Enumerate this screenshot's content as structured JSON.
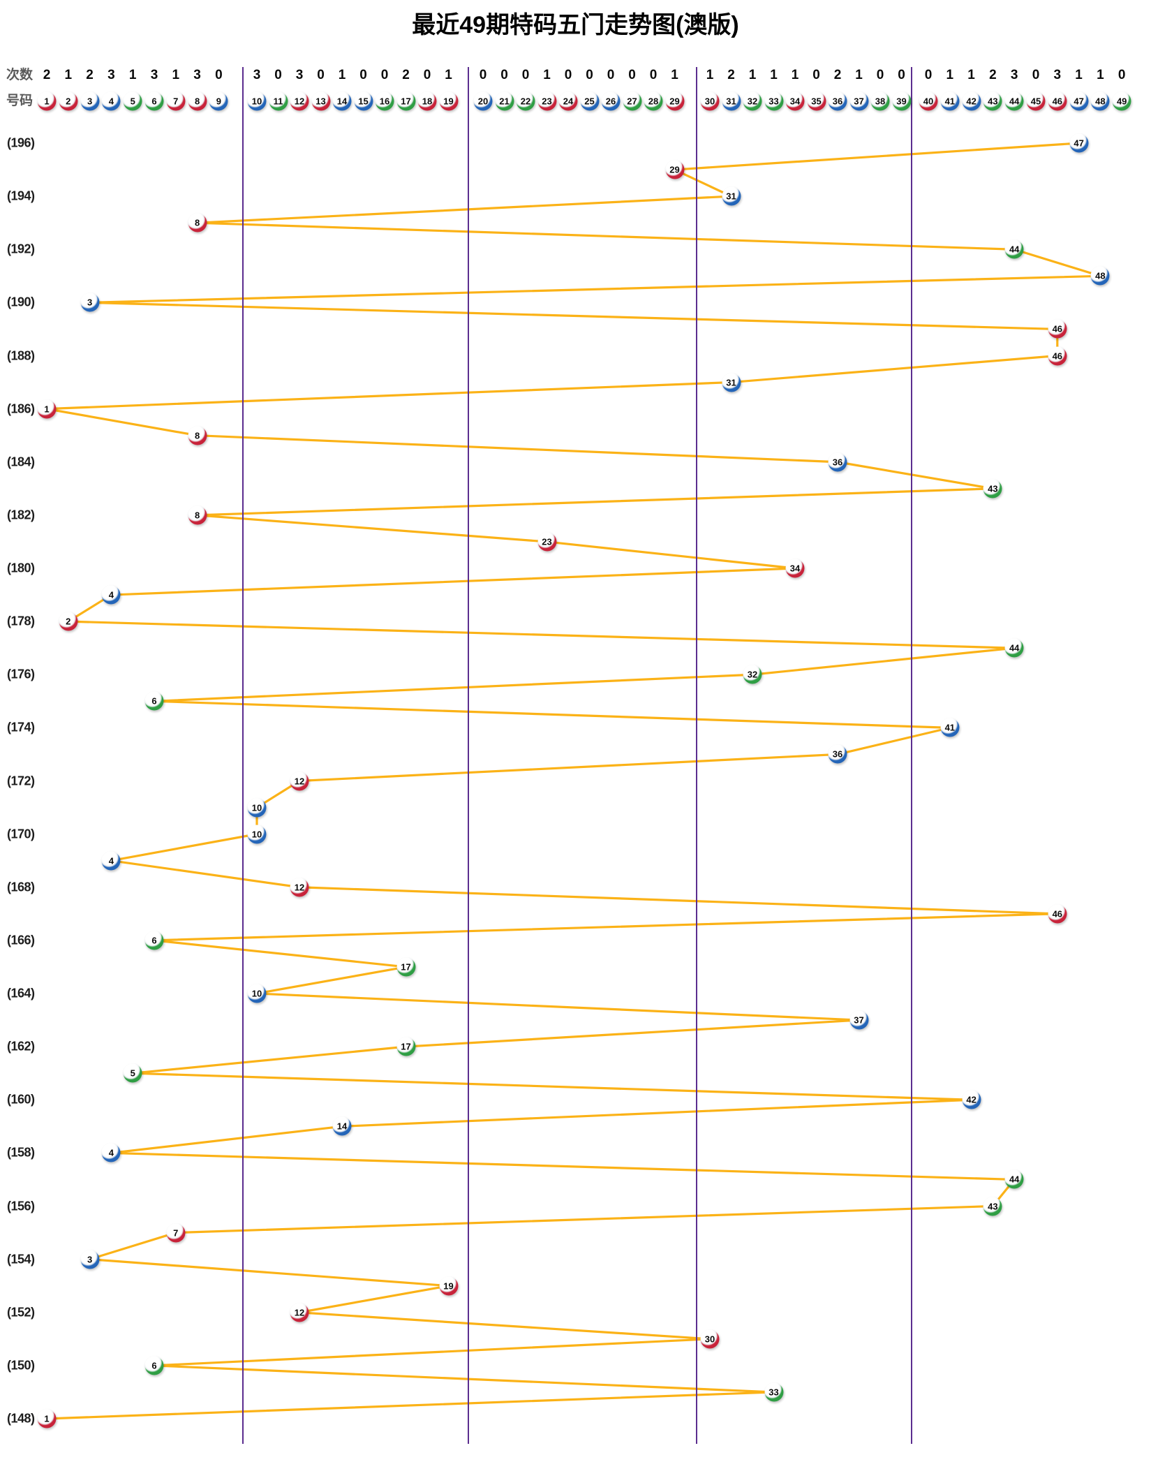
{
  "title": "最近49期特码五门走势图(澳版)",
  "header": {
    "count_label": "次数",
    "number_label": "号码",
    "counts": [
      2,
      1,
      2,
      3,
      1,
      3,
      1,
      3,
      0,
      3,
      0,
      3,
      0,
      1,
      0,
      0,
      2,
      0,
      1,
      0,
      0,
      0,
      1,
      0,
      0,
      0,
      0,
      0,
      1,
      1,
      2,
      1,
      1,
      1,
      0,
      2,
      1,
      0,
      0,
      0,
      1,
      1,
      2,
      3,
      0,
      3,
      1,
      1,
      0
    ]
  },
  "colors": {
    "red": "#C8233A",
    "red_dark": "#7E0E1E",
    "blue": "#2465B8",
    "blue_dark": "#113E7C",
    "green": "#2F9E44",
    "green_dark": "#156327",
    "line": "#FBB217",
    "divider": "#5B2D8F"
  },
  "ball_color_groups": {
    "red": [
      1,
      2,
      7,
      8,
      12,
      13,
      18,
      19,
      23,
      24,
      29,
      30,
      34,
      35,
      40,
      45,
      46
    ],
    "blue": [
      3,
      4,
      9,
      10,
      14,
      15,
      20,
      25,
      26,
      31,
      36,
      37,
      41,
      42,
      47,
      48
    ],
    "green": [
      5,
      6,
      11,
      16,
      17,
      21,
      22,
      27,
      28,
      32,
      33,
      38,
      39,
      43,
      44,
      49
    ]
  },
  "period_labels": [
    "(196)",
    "(194)",
    "(192)",
    "(190)",
    "(188)",
    "(186)",
    "(184)",
    "(182)",
    "(180)",
    "(178)",
    "(176)",
    "(174)",
    "(172)",
    "(170)",
    "(168)",
    "(166)",
    "(164)",
    "(162)",
    "(160)",
    "(158)",
    "(156)",
    "(154)",
    "(152)",
    "(150)",
    "(148)"
  ],
  "chart_data": {
    "type": "line",
    "title": "最近49期特码五门走势图(澳版)",
    "xlabel": "号码 (ball number 1-49, split into 5 sections)",
    "ylabel": "期数 (draw period, 196 top → 148 bottom)",
    "x_sections": [
      [
        1,
        9
      ],
      [
        10,
        19
      ],
      [
        20,
        29
      ],
      [
        30,
        39
      ],
      [
        40,
        49
      ]
    ],
    "x_range": [
      1,
      49
    ],
    "y_range": [
      148,
      196
    ],
    "legend_position": "none",
    "grid": "vertical section dividers only",
    "counts_per_ball": [
      2,
      1,
      2,
      3,
      1,
      3,
      1,
      3,
      0,
      3,
      0,
      3,
      0,
      1,
      0,
      0,
      2,
      0,
      1,
      0,
      0,
      0,
      1,
      0,
      0,
      0,
      0,
      0,
      1,
      1,
      2,
      1,
      1,
      1,
      0,
      2,
      1,
      0,
      0,
      0,
      1,
      1,
      2,
      3,
      0,
      3,
      1,
      1,
      0
    ],
    "points": [
      {
        "period": 196,
        "ball": 47
      },
      {
        "period": 195,
        "ball": 29
      },
      {
        "period": 194,
        "ball": 31
      },
      {
        "period": 193,
        "ball": 8
      },
      {
        "period": 192,
        "ball": 44
      },
      {
        "period": 191,
        "ball": 48
      },
      {
        "period": 190,
        "ball": 3
      },
      {
        "period": 189,
        "ball": 46
      },
      {
        "period": 188,
        "ball": 46
      },
      {
        "period": 187,
        "ball": 31
      },
      {
        "period": 186,
        "ball": 1
      },
      {
        "period": 185,
        "ball": 8
      },
      {
        "period": 184,
        "ball": 36
      },
      {
        "period": 183,
        "ball": 43
      },
      {
        "period": 182,
        "ball": 8
      },
      {
        "period": 181,
        "ball": 23
      },
      {
        "period": 180,
        "ball": 34
      },
      {
        "period": 179,
        "ball": 4
      },
      {
        "period": 178,
        "ball": 2
      },
      {
        "period": 177,
        "ball": 44
      },
      {
        "period": 176,
        "ball": 32
      },
      {
        "period": 175,
        "ball": 6
      },
      {
        "period": 174,
        "ball": 41
      },
      {
        "period": 173,
        "ball": 36
      },
      {
        "period": 172,
        "ball": 12
      },
      {
        "period": 171,
        "ball": 10
      },
      {
        "period": 170,
        "ball": 10
      },
      {
        "period": 169,
        "ball": 4
      },
      {
        "period": 168,
        "ball": 12
      },
      {
        "period": 167,
        "ball": 46
      },
      {
        "period": 166,
        "ball": 6
      },
      {
        "period": 165,
        "ball": 17
      },
      {
        "period": 164,
        "ball": 10
      },
      {
        "period": 163,
        "ball": 37
      },
      {
        "period": 162,
        "ball": 17
      },
      {
        "period": 161,
        "ball": 5
      },
      {
        "period": 160,
        "ball": 42
      },
      {
        "period": 159,
        "ball": 14
      },
      {
        "period": 158,
        "ball": 4
      },
      {
        "period": 157,
        "ball": 44
      },
      {
        "period": 156,
        "ball": 43
      },
      {
        "period": 155,
        "ball": 7
      },
      {
        "period": 154,
        "ball": 3
      },
      {
        "period": 153,
        "ball": 19
      },
      {
        "period": 152,
        "ball": 12
      },
      {
        "period": 151,
        "ball": 30
      },
      {
        "period": 150,
        "ball": 6
      },
      {
        "period": 149,
        "ball": 33
      },
      {
        "period": 148,
        "ball": 1
      }
    ]
  }
}
